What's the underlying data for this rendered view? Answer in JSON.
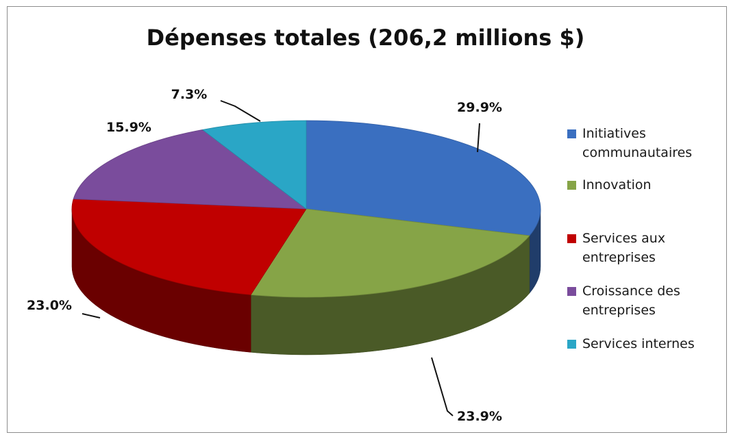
{
  "chart_data": {
    "type": "pie",
    "title": "Dépenses totales (206,2 millions $)",
    "three_d": true,
    "legend_position": "right",
    "slices": [
      {
        "name": "Initiatives communautaires",
        "value": 29.9,
        "label": "29.9%",
        "color": "#3a6fc0"
      },
      {
        "name": "Innovation",
        "value": 23.9,
        "label": "23.9%",
        "color": "#86a447"
      },
      {
        "name": "Services aux entreprises",
        "value": 23.0,
        "label": "23.0%",
        "color": "#c00000"
      },
      {
        "name": "Croissance des entreprises",
        "value": 15.9,
        "label": "15.9%",
        "color": "#7a4c9c"
      },
      {
        "name": "Services internes",
        "value": 7.3,
        "label": "7.3%",
        "color": "#2aa6c6"
      }
    ],
    "legend": [
      {
        "line1": "Initiatives",
        "line2": "communautaires",
        "color": "#3a6fc0"
      },
      {
        "line1": "Innovation",
        "line2": "",
        "color": "#86a447"
      },
      {
        "line1": "Services aux",
        "line2": "entreprises",
        "color": "#c00000"
      },
      {
        "line1": "Croissance des",
        "line2": "entreprises",
        "color": "#7a4c9c"
      },
      {
        "line1": "Services internes",
        "line2": "",
        "color": "#2aa6c6"
      }
    ]
  }
}
